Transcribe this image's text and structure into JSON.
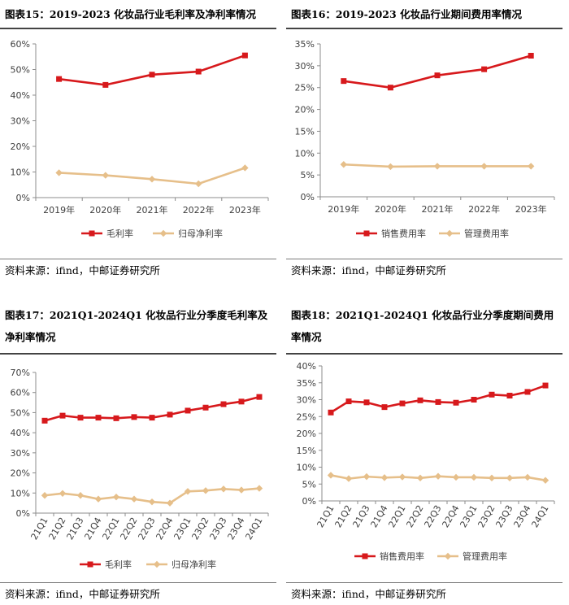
{
  "panels": [
    {
      "title": "图表15：2019-2023 化妆品行业毛利率及净利率情况",
      "source": "资料来源：ifind，中邮证券研究所",
      "chart_data": {
        "type": "line",
        "categories": [
          "2019年",
          "2020年",
          "2021年",
          "2022年",
          "2023年"
        ],
        "series": [
          {
            "name": "毛利率",
            "values": [
              46.3,
              44.0,
              48.0,
              49.2,
              55.5
            ],
            "color": "#d7191c"
          },
          {
            "name": "归母净利率",
            "values": [
              9.7,
              8.7,
              7.2,
              5.4,
              11.6
            ],
            "color": "#e6bf8a"
          }
        ],
        "ylim": [
          0,
          60
        ],
        "yticks": [
          "0%",
          "10%",
          "20%",
          "30%",
          "40%",
          "50%",
          "60%"
        ],
        "xlabel": "",
        "ylabel": "",
        "legend": "bottom",
        "grid": false
      }
    },
    {
      "title": "图表16：2019-2023 化妆品行业期间费用率情况",
      "source": "资料来源：ifind，中邮证券研究所",
      "chart_data": {
        "type": "line",
        "categories": [
          "2019年",
          "2020年",
          "2021年",
          "2022年",
          "2023年"
        ],
        "series": [
          {
            "name": "销售费用率",
            "values": [
              26.5,
              25.0,
              27.8,
              29.2,
              32.3
            ],
            "color": "#d7191c"
          },
          {
            "name": "管理费用率",
            "values": [
              7.4,
              6.9,
              7.0,
              7.0,
              7.0
            ],
            "color": "#e6bf8a"
          }
        ],
        "ylim": [
          0,
          35
        ],
        "yticks": [
          "0%",
          "5%",
          "10%",
          "15%",
          "20%",
          "25%",
          "30%",
          "35%"
        ],
        "xlabel": "",
        "ylabel": "",
        "legend": "bottom",
        "grid": false
      }
    },
    {
      "title": "图表17：2021Q1-2024Q1 化妆品行业分季度毛利率及净利率情况",
      "source": "资料来源：ifind，中邮证券研究所",
      "chart_data": {
        "type": "line",
        "categories": [
          "21Q1",
          "21Q2",
          "21Q3",
          "21Q4",
          "22Q1",
          "22Q2",
          "22Q3",
          "22Q4",
          "23Q1",
          "23Q2",
          "23Q3",
          "23Q4",
          "24Q1"
        ],
        "series": [
          {
            "name": "毛利率",
            "values": [
              46.0,
              48.5,
              47.5,
              47.5,
              47.2,
              47.8,
              47.5,
              49.0,
              51.0,
              52.5,
              54.2,
              55.5,
              57.8
            ],
            "color": "#d7191c"
          },
          {
            "name": "归母净利率",
            "values": [
              8.8,
              9.8,
              8.8,
              7.0,
              8.0,
              7.0,
              5.6,
              5.0,
              10.8,
              11.2,
              12.0,
              11.5,
              12.3
            ],
            "color": "#e6bf8a"
          }
        ],
        "ylim": [
          0,
          70
        ],
        "yticks": [
          "0%",
          "10%",
          "20%",
          "30%",
          "40%",
          "50%",
          "60%",
          "70%"
        ],
        "xlabel": "",
        "ylabel": "",
        "legend": "bottom",
        "grid": false
      }
    },
    {
      "title": "图表18：2021Q1-2024Q1 化妆品行业分季度期间费用率情况",
      "source": "资料来源：ifind，中邮证券研究所",
      "chart_data": {
        "type": "line",
        "categories": [
          "21Q1",
          "21Q2",
          "21Q3",
          "21Q4",
          "22Q1",
          "22Q2",
          "22Q3",
          "22Q4",
          "23Q1",
          "23Q2",
          "23Q3",
          "23Q4",
          "24Q1"
        ],
        "series": [
          {
            "name": "销售费用率",
            "values": [
              26.2,
              29.5,
              29.2,
              27.8,
              28.9,
              29.8,
              29.3,
              29.1,
              30.0,
              31.5,
              31.2,
              32.3,
              34.2
            ],
            "color": "#d7191c"
          },
          {
            "name": "管理费用率",
            "values": [
              7.6,
              6.6,
              7.2,
              6.9,
              7.1,
              6.8,
              7.3,
              7.0,
              7.0,
              6.8,
              6.8,
              7.0,
              6.1
            ],
            "color": "#e6bf8a"
          }
        ],
        "ylim": [
          0,
          40
        ],
        "yticks": [
          "0%",
          "5%",
          "10%",
          "15%",
          "20%",
          "25%",
          "30%",
          "35%",
          "40%"
        ],
        "xlabel": "",
        "ylabel": "",
        "legend": "bottom",
        "grid": false
      }
    }
  ]
}
